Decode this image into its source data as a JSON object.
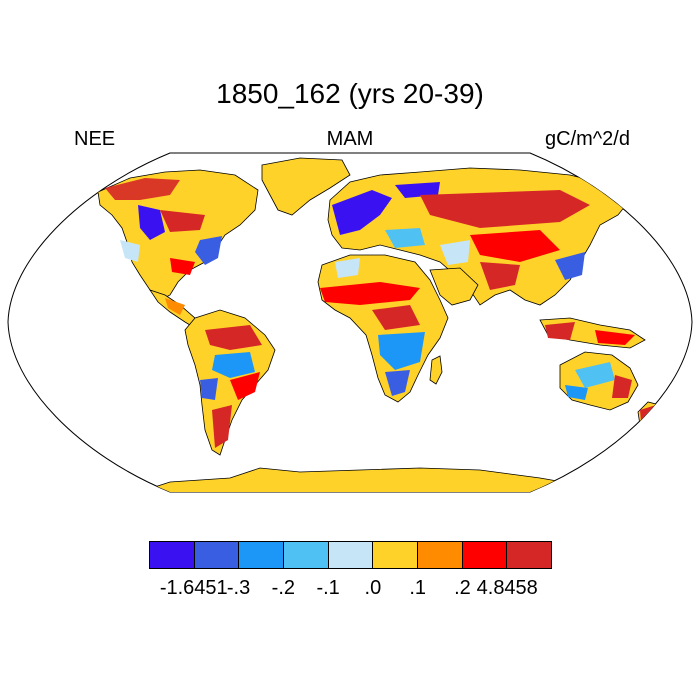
{
  "title": "1850_162 (yrs 20-39)",
  "left_label": "NEE",
  "center_label": "MAM",
  "right_label": "gC/m^2/d",
  "colorbar": {
    "colors": [
      "#3a12f2",
      "#3a5ee2",
      "#1c97f7",
      "#4fc1f2",
      "#c6e5f7",
      "#ffd22a",
      "#ff8c00",
      "#ff0000",
      "#d62727"
    ],
    "tick_labels": [
      "-1.6451",
      "-.3",
      "-.2",
      "-.1",
      ".0",
      ".1",
      ".2",
      "4.8458"
    ]
  },
  "map_colors": {
    "ocean": "#ffffff",
    "land_base": "#ffd22a",
    "coast": "#000000"
  }
}
